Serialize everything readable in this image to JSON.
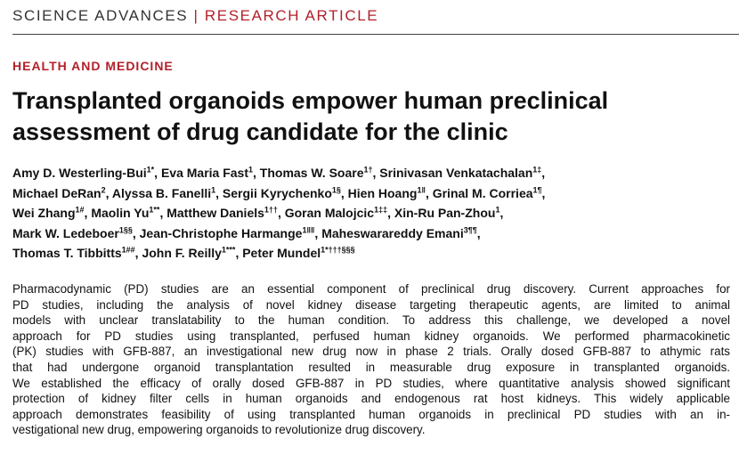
{
  "header": {
    "journal": "SCIENCE ADVANCES",
    "separator": "|",
    "article_type": "RESEARCH ARTICLE"
  },
  "section": "HEALTH AND MEDICINE",
  "title_lines": [
    "Transplanted organoids empower human preclinical",
    "assessment of drug candidate for the clinic"
  ],
  "author_lines": [
    [
      {
        "text": "Amy D. Westerling-Bui",
        "sup": "1*"
      },
      {
        "text": ", Eva Maria Fast",
        "sup": "1"
      },
      {
        "text": ", Thomas W. Soare",
        "sup": "1†"
      },
      {
        "text": ", Srinivasan Venkatachalan",
        "sup": "1‡"
      },
      {
        "text": ","
      }
    ],
    [
      {
        "text": "Michael DeRan",
        "sup": "2"
      },
      {
        "text": ", Alyssa B. Fanelli",
        "sup": "1"
      },
      {
        "text": ", Sergii Kyrychenko",
        "sup": "1§"
      },
      {
        "text": ", Hien Hoang",
        "sup": "1‖"
      },
      {
        "text": ", Grinal M. Corriea",
        "sup": "1¶"
      },
      {
        "text": ","
      }
    ],
    [
      {
        "text": "Wei Zhang",
        "sup": "1#"
      },
      {
        "text": ", Maolin Yu",
        "sup": "1**"
      },
      {
        "text": ", Matthew Daniels",
        "sup": "1††"
      },
      {
        "text": ", Goran Malojcic",
        "sup": "1‡‡"
      },
      {
        "text": ", Xin-Ru Pan-Zhou",
        "sup": "1"
      },
      {
        "text": ","
      }
    ],
    [
      {
        "text": "Mark W. Ledeboer",
        "sup": "1§§"
      },
      {
        "text": ", Jean-Christophe Harmange",
        "sup": "1‖‖"
      },
      {
        "text": ", Maheswarareddy Emani",
        "sup": "3¶¶"
      },
      {
        "text": ","
      }
    ],
    [
      {
        "text": "Thomas T. Tibbitts",
        "sup": "1##"
      },
      {
        "text": ", John F. Reilly",
        "sup": "1***"
      },
      {
        "text": ", Peter Mundel",
        "sup": "1*†††§§§"
      }
    ]
  ],
  "abstract_lines": [
    "Pharmacodynamic (PD) studies are an essential component of preclinical drug discovery. Current approaches for",
    "PD studies, including the analysis of novel kidney disease targeting therapeutic agents, are limited to animal",
    "models with unclear translatability to the human condition. To address this challenge, we developed a novel",
    "approach for PD studies using transplanted, perfused human kidney organoids. We performed pharmacokinetic",
    "(PK) studies with GFB-887, an investigational new drug now in phase 2 trials. Orally dosed GFB-887 to athymic rats",
    "that had undergone organoid transplantation resulted in measurable drug exposure in transplanted organoids.",
    "We established the efficacy of orally dosed GFB-887 in PD studies, where quantitative analysis showed significant",
    "protection of kidney filter cells in human organoids and endogenous rat host kidneys. This widely applicable",
    "approach demonstrates feasibility of using transplanted human organoids in preclinical PD studies with an in-",
    "vestigational new drug, empowering organoids to revolutionize drug discovery."
  ]
}
